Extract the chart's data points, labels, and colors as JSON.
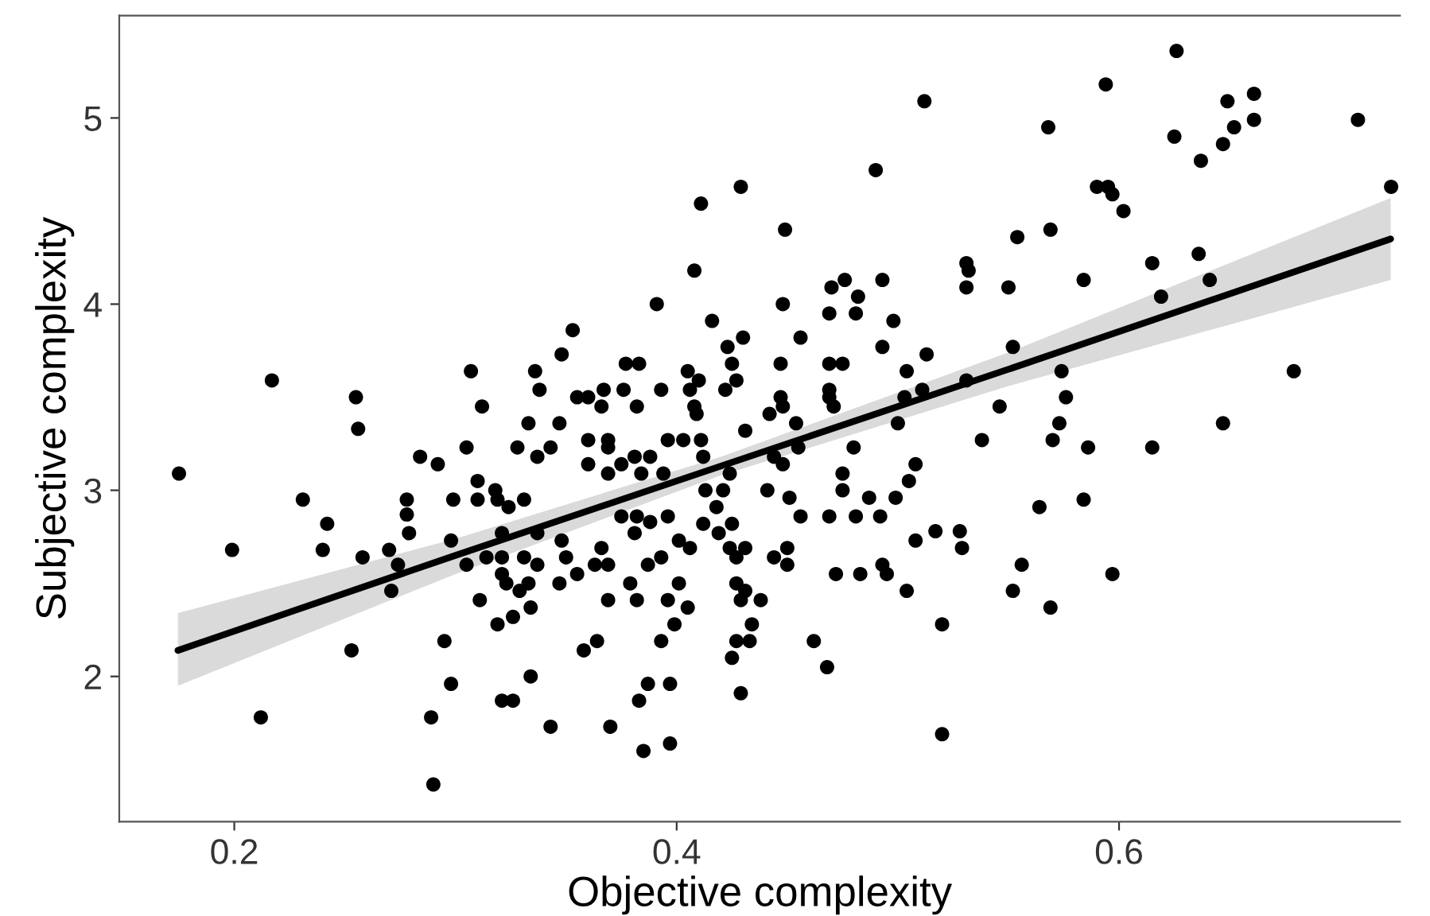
{
  "chart_data": {
    "type": "scatter",
    "xlabel": "Objective complexity",
    "ylabel": "Subjective complexity",
    "xlim": [
      0.148,
      0.727
    ],
    "ylim": [
      1.22,
      5.55
    ],
    "xticks": [
      0.2,
      0.4,
      0.6
    ],
    "yticks": [
      2,
      3,
      4,
      5
    ],
    "grid": false,
    "series": [
      {
        "color": "#000000",
        "marker": "circle",
        "x": [
          0.217,
          0.255,
          0.256,
          0.307,
          0.312,
          0.336,
          0.338,
          0.333,
          0.512,
          0.49,
          0.429,
          0.411,
          0.449,
          0.408,
          0.391,
          0.448,
          0.47,
          0.476,
          0.482,
          0.493,
          0.469,
          0.481,
          0.498,
          0.531,
          0.532,
          0.531,
          0.353,
          0.348,
          0.416,
          0.43,
          0.456,
          0.423,
          0.493,
          0.513,
          0.504,
          0.377,
          0.383,
          0.425,
          0.447,
          0.469,
          0.475,
          0.405,
          0.41,
          0.427,
          0.355,
          0.36,
          0.367,
          0.376,
          0.393,
          0.406,
          0.422,
          0.366,
          0.382,
          0.408,
          0.409,
          0.447,
          0.448,
          0.442,
          0.469,
          0.469,
          0.471,
          0.503,
          0.511,
          0.531,
          0.347,
          0.454,
          0.5,
          0.626,
          0.594,
          0.568,
          0.649,
          0.661,
          0.652,
          0.661,
          0.625,
          0.647,
          0.637,
          0.708,
          0.59,
          0.595,
          0.597,
          0.602,
          0.723,
          0.554,
          0.569,
          0.615,
          0.636,
          0.584,
          0.55,
          0.641,
          0.619,
          0.552,
          0.574,
          0.576,
          0.546,
          0.573,
          0.679,
          0.647,
          0.538,
          0.57,
          0.586,
          0.615,
          0.564,
          0.584,
          0.556,
          0.552,
          0.569,
          0.597,
          0.52,
          0.52,
          0.468,
          0.462,
          0.429,
          0.397,
          0.385,
          0.37,
          0.343,
          0.387,
          0.397,
          0.383,
          0.358,
          0.364,
          0.393,
          0.399,
          0.425,
          0.427,
          0.433,
          0.434,
          0.405,
          0.369,
          0.382,
          0.396,
          0.401,
          0.379,
          0.347,
          0.355,
          0.363,
          0.369,
          0.387,
          0.427,
          0.431,
          0.438,
          0.429,
          0.472,
          0.483,
          0.495,
          0.493,
          0.504,
          0.508,
          0.517,
          0.528,
          0.529,
          0.444,
          0.45,
          0.45,
          0.424,
          0.431,
          0.427,
          0.401,
          0.406,
          0.393,
          0.366,
          0.348,
          0.35,
          0.36,
          0.369,
          0.369,
          0.396,
          0.403,
          0.411,
          0.431,
          0.36,
          0.369,
          0.375,
          0.381,
          0.388,
          0.394,
          0.384,
          0.412,
          0.424,
          0.421,
          0.413,
          0.441,
          0.451,
          0.444,
          0.448,
          0.455,
          0.48,
          0.475,
          0.475,
          0.487,
          0.499,
          0.505,
          0.508,
          0.456,
          0.469,
          0.481,
          0.492,
          0.375,
          0.382,
          0.388,
          0.396,
          0.381,
          0.412,
          0.419,
          0.425,
          0.418,
          0.343,
          0.175,
          0.199,
          0.212,
          0.231,
          0.242,
          0.24,
          0.258,
          0.253,
          0.27,
          0.274,
          0.271,
          0.278,
          0.278,
          0.279,
          0.284,
          0.292,
          0.295,
          0.298,
          0.289,
          0.29,
          0.298,
          0.305,
          0.305,
          0.299,
          0.31,
          0.31,
          0.318,
          0.319,
          0.324,
          0.331,
          0.314,
          0.321,
          0.321,
          0.321,
          0.323,
          0.331,
          0.337,
          0.333,
          0.329,
          0.311,
          0.319,
          0.326,
          0.334,
          0.334,
          0.321,
          0.326,
          0.328,
          0.337,
          0.337
        ],
        "values": [
          3.59,
          3.5,
          3.33,
          3.64,
          3.45,
          3.64,
          3.54,
          3.36,
          5.09,
          4.72,
          4.63,
          4.54,
          4.4,
          4.18,
          4.0,
          4.0,
          4.09,
          4.13,
          4.04,
          4.13,
          3.95,
          3.95,
          3.91,
          4.22,
          4.18,
          4.09,
          3.86,
          3.73,
          3.91,
          3.82,
          3.82,
          3.77,
          3.77,
          3.73,
          3.64,
          3.68,
          3.68,
          3.68,
          3.68,
          3.68,
          3.68,
          3.64,
          3.59,
          3.59,
          3.5,
          3.5,
          3.54,
          3.54,
          3.54,
          3.54,
          3.54,
          3.45,
          3.45,
          3.45,
          3.41,
          3.5,
          3.45,
          3.41,
          3.54,
          3.5,
          3.45,
          3.5,
          3.54,
          3.59,
          3.36,
          3.36,
          3.36,
          5.36,
          5.18,
          4.95,
          5.09,
          5.13,
          4.95,
          4.99,
          4.9,
          4.86,
          4.77,
          4.99,
          4.63,
          4.63,
          4.59,
          4.5,
          4.63,
          4.36,
          4.4,
          4.22,
          4.27,
          4.13,
          4.09,
          4.13,
          4.04,
          3.77,
          3.64,
          3.5,
          3.45,
          3.36,
          3.64,
          3.36,
          3.27,
          3.27,
          3.23,
          3.23,
          2.91,
          2.95,
          2.6,
          2.46,
          2.37,
          2.55,
          2.28,
          1.69,
          2.05,
          2.19,
          1.91,
          1.64,
          1.6,
          1.73,
          1.73,
          1.96,
          1.96,
          1.87,
          2.14,
          2.19,
          2.19,
          2.28,
          2.1,
          2.19,
          2.19,
          2.28,
          2.37,
          2.41,
          2.41,
          2.41,
          2.5,
          2.5,
          2.5,
          2.55,
          2.6,
          2.6,
          2.6,
          2.5,
          2.46,
          2.41,
          2.41,
          2.55,
          2.55,
          2.55,
          2.6,
          2.46,
          2.73,
          2.78,
          2.78,
          2.69,
          2.64,
          2.69,
          2.6,
          2.69,
          2.69,
          2.64,
          2.73,
          2.69,
          2.64,
          2.69,
          2.73,
          2.64,
          3.27,
          3.27,
          3.23,
          3.27,
          3.27,
          3.27,
          3.32,
          3.14,
          3.09,
          3.14,
          3.18,
          3.18,
          3.09,
          3.09,
          3.18,
          3.09,
          3.0,
          3.0,
          3.0,
          2.96,
          3.18,
          3.14,
          3.23,
          3.23,
          3.09,
          3.0,
          2.96,
          2.96,
          3.05,
          3.14,
          2.86,
          2.86,
          2.86,
          2.86,
          2.86,
          2.86,
          2.83,
          2.86,
          2.77,
          2.82,
          2.77,
          2.82,
          2.91,
          3.23,
          3.09,
          2.68,
          1.78,
          2.95,
          2.82,
          2.68,
          2.64,
          2.14,
          2.68,
          2.6,
          2.46,
          2.95,
          2.87,
          2.77,
          3.18,
          3.14,
          2.19,
          1.96,
          1.78,
          1.42,
          2.73,
          2.6,
          3.23,
          2.95,
          3.05,
          2.95,
          3.0,
          2.95,
          2.91,
          2.95,
          2.64,
          2.64,
          2.77,
          2.55,
          2.5,
          2.64,
          2.6,
          2.5,
          2.46,
          2.41,
          2.28,
          2.32,
          2.37,
          2.0,
          1.87,
          1.87,
          3.23,
          3.18,
          2.77
        ]
      },
      {
        "type": "line",
        "color": "#000000",
        "marker": "none",
        "x": [
          0.1745,
          0.3,
          0.42,
          0.55,
          0.7228
        ],
        "values": [
          2.14,
          2.65,
          3.13,
          3.65,
          4.35
        ],
        "lower": [
          1.95,
          2.55,
          3.08,
          3.56,
          4.13
        ],
        "upper": [
          2.34,
          2.74,
          3.18,
          3.74,
          4.57
        ]
      }
    ]
  }
}
